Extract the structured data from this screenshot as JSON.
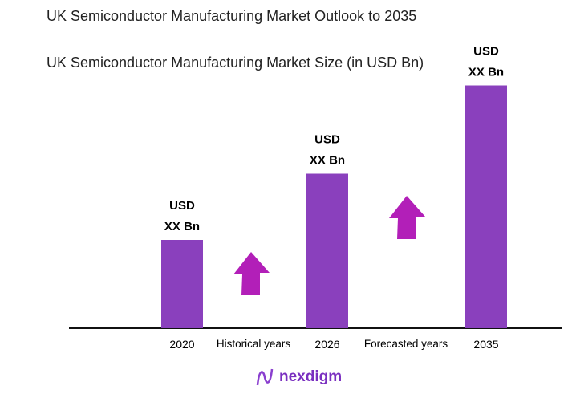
{
  "title": " UK Semiconductor Manufacturing Market Outlook to 2035",
  "subtitle": "UK Semiconductor Manufacturing Market Size (in USD Bn)",
  "logo_text": "nexdigm",
  "colors": {
    "bar": "#8A40BD",
    "arrow": "#B21FB8",
    "axis": "#111111"
  },
  "chart_data": {
    "type": "bar",
    "title": " UK Semiconductor Manufacturing Market Outlook to 2035",
    "subtitle": "UK Semiconductor Manufacturing Market Size (in USD Bn)",
    "categories": [
      "2020",
      "2026",
      "2035"
    ],
    "values": [
      1.0,
      1.75,
      2.75
    ],
    "data_labels": [
      [
        "USD",
        "XX Bn"
      ],
      [
        "USD",
        "XX Bn"
      ],
      [
        "USD",
        "XX Bn"
      ]
    ],
    "period_labels": [
      "Historical years",
      "Forecasted years"
    ],
    "annotations": [
      "up-arrow-icon",
      "up-arrow-icon"
    ],
    "grid": false,
    "legend": "none"
  }
}
